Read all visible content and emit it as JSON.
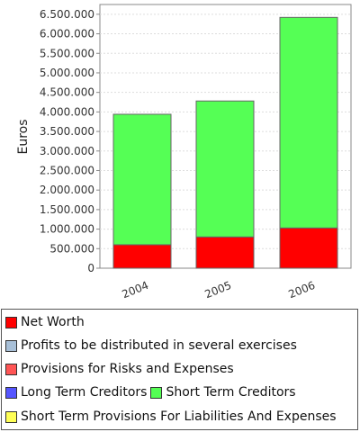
{
  "chart_data": {
    "type": "bar",
    "stacked": true,
    "categories": [
      "2004",
      "2005",
      "2006"
    ],
    "ylabel": "Euros",
    "ylim": [
      0,
      6750000
    ],
    "yticks": [
      0,
      500000,
      1000000,
      1500000,
      2000000,
      2500000,
      3000000,
      3500000,
      4000000,
      4500000,
      5000000,
      5500000,
      6000000,
      6500000
    ],
    "ytick_labels": [
      "0",
      "500.000",
      "1.000.000",
      "1.500.000",
      "2.000.000",
      "2.500.000",
      "3.000.000",
      "3.500.000",
      "4.000.000",
      "4.500.000",
      "5.000.000",
      "5.500.000",
      "6.000.000",
      "6.500.000"
    ],
    "grid": true,
    "legend_position": "bottom",
    "series": [
      {
        "name": "Net Worth",
        "color": "#ff0000",
        "values": [
          600000,
          800000,
          1030000
        ]
      },
      {
        "name": "Profits to be distributed in several exercises",
        "color": "#a8c0d8",
        "values": [
          0,
          0,
          0
        ]
      },
      {
        "name": "Provisions for Risks and Expenses",
        "color": "#ff5555",
        "values": [
          0,
          0,
          0
        ]
      },
      {
        "name": "Long Term Creditors",
        "color": "#5555ff",
        "values": [
          0,
          0,
          0
        ]
      },
      {
        "name": "Short Term Creditors",
        "color": "#55ff55",
        "values": [
          3340000,
          3480000,
          5390000
        ]
      },
      {
        "name": "Short Term Provisions For Liabilities And Expenses",
        "color": "#ffff55",
        "values": [
          0,
          0,
          0
        ]
      }
    ]
  },
  "legend": {
    "rows": [
      [
        0
      ],
      [
        1
      ],
      [
        2
      ],
      [
        3,
        4
      ],
      [
        5
      ]
    ]
  }
}
